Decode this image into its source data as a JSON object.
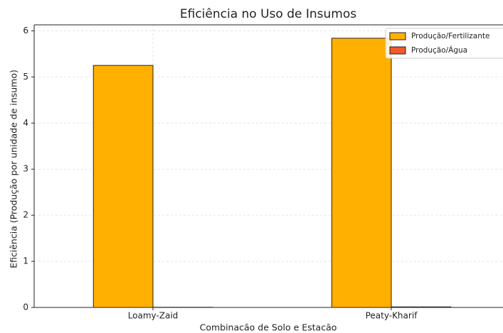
{
  "chart_data": {
    "type": "bar",
    "title": "Eficiência no Uso de Insumos",
    "x_label": "Combinacão de Solo e Estacão",
    "y_label": "Eficiência (Produção por unidade de insumo)",
    "categories": [
      "Loamy-Zaid",
      "Peaty-Kharif"
    ],
    "series": [
      {
        "name": "Produção/Fertilizante",
        "color": "#ffb000",
        "values": [
          5.25,
          5.84
        ]
      },
      {
        "name": "Produção/Água",
        "color": "#f05a28",
        "values": [
          0.004,
          0.012
        ]
      }
    ],
    "ylim": [
      0,
      6.13
    ],
    "yticks": [
      0,
      1,
      2,
      3,
      4,
      5,
      6
    ],
    "grid": true,
    "legend": "upper right"
  }
}
